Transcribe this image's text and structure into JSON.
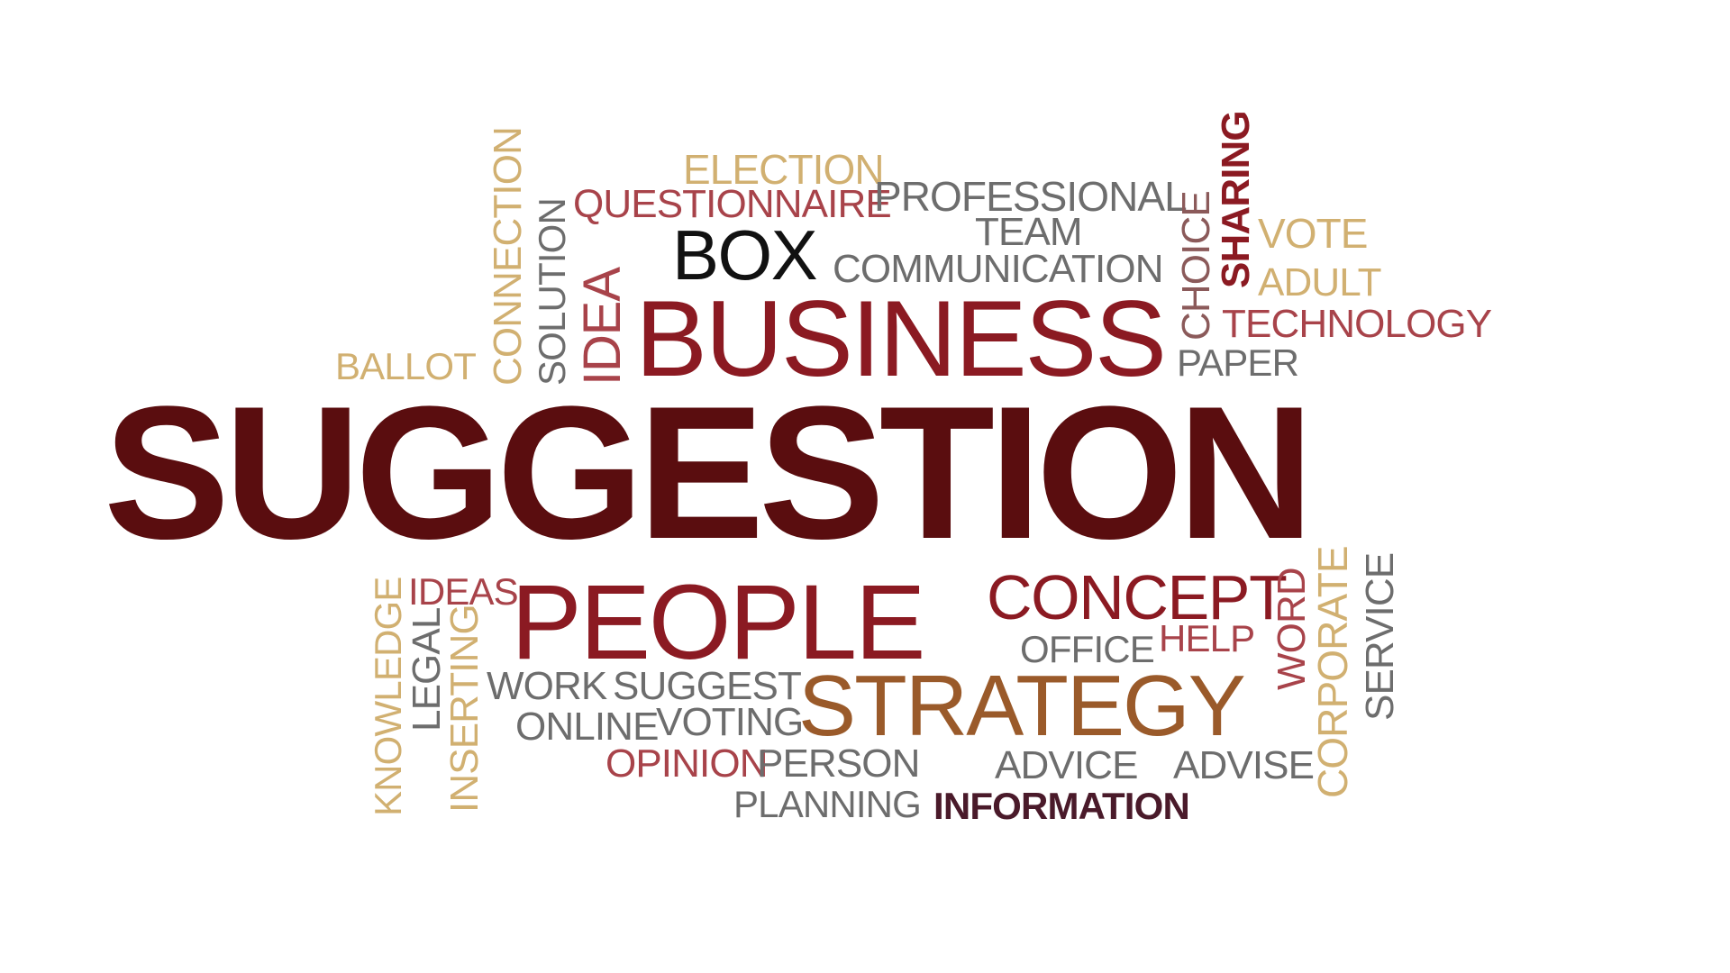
{
  "colors": {
    "maroon": "#5a0d0f",
    "red": "#8b1a22",
    "rose": "#a8434a",
    "brown": "#9a5a2a",
    "gold": "#d1b071",
    "gray": "#6d6d6d",
    "dark": "#2b1a1a",
    "black": "#111111"
  },
  "words": {
    "suggestion": "SUGGESTION",
    "business": "BUSINESS",
    "people": "PEOPLE",
    "strategy": "STRATEGY",
    "concept": "CONCEPT",
    "box": "BOX",
    "election": "ELECTION",
    "questionnaire": "QUESTIONNAIRE",
    "professional": "PROFESSIONAL",
    "team": "TEAM",
    "communication": "COMMUNICATION",
    "connection": "CONNECTION",
    "solution": "SOLUTION",
    "idea": "IDEA",
    "ballot": "BALLOT",
    "choice": "CHOICE",
    "sharing": "SHARING",
    "vote": "VOTE",
    "adult": "ADULT",
    "technology": "TECHNOLOGY",
    "paper": "PAPER",
    "knowledge": "KNOWLEDGE",
    "legal": "LEGAL",
    "ideas": "IDEAS",
    "inserting": "INSERTING",
    "work": "WORK",
    "suggest": "SUGGEST",
    "online": "ONLINE",
    "voting": "VOTING",
    "opinion": "OPINION",
    "person": "PERSON",
    "planning": "PLANNING",
    "information": "INFORMATION",
    "office": "OFFICE",
    "help": "HELP",
    "advice": "ADVICE",
    "advise": "ADVISE",
    "word": "WORD",
    "corporate": "CORPORATE",
    "service": "SERVICE"
  }
}
